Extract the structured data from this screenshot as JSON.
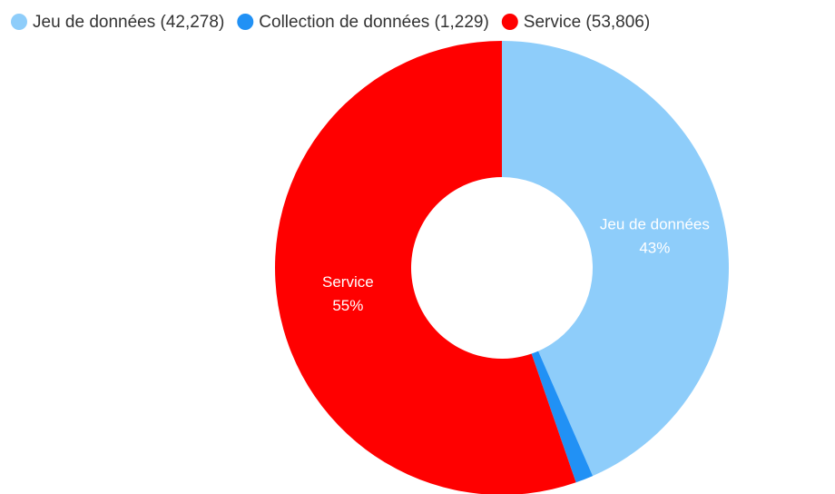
{
  "chart_data": {
    "type": "donut",
    "categories": [
      "Jeu de données",
      "Collection de données",
      "Service"
    ],
    "values": [
      42278,
      1229,
      53806
    ],
    "legend": [
      "Jeu de données (42,278)",
      "Collection de données (1,229)",
      "Service (53,806)"
    ],
    "percent_labels": [
      "43%",
      null,
      "55%"
    ],
    "colors": [
      "#8ecdfa",
      "#2191f5",
      "#ff0000"
    ]
  }
}
